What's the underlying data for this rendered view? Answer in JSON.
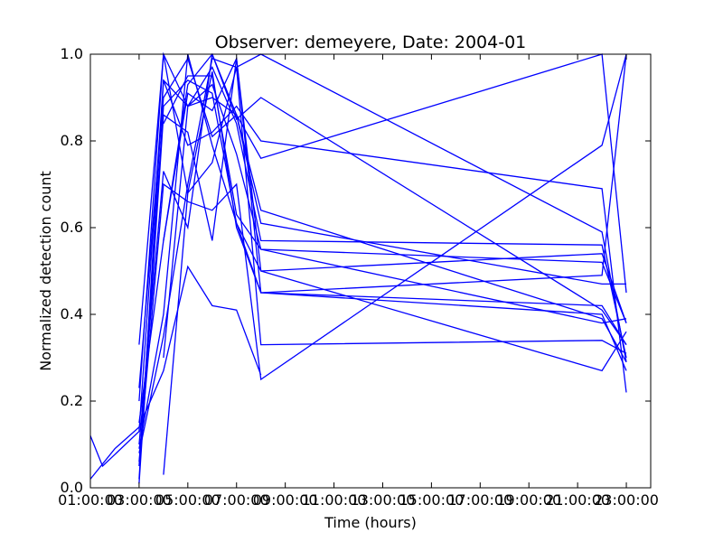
{
  "chart_data": {
    "type": "line",
    "title": "Observer: demeyere, Date: 2004-01",
    "xlabel": "Time (hours)",
    "ylabel": "Normalized detection count",
    "xlim": [
      1,
      24
    ],
    "ylim": [
      0,
      1
    ],
    "grid": false,
    "legend": "none",
    "line_color": "#0000ff",
    "x_ticks": [
      {
        "value": 1,
        "label": "01:00:00"
      },
      {
        "value": 3,
        "label": "03:00:00"
      },
      {
        "value": 5,
        "label": "05:00:00"
      },
      {
        "value": 7,
        "label": "07:00:00"
      },
      {
        "value": 9,
        "label": "09:00:00"
      },
      {
        "value": 11,
        "label": "11:00:00"
      },
      {
        "value": 13,
        "label": "13:00:00"
      },
      {
        "value": 15,
        "label": "15:00:00"
      },
      {
        "value": 17,
        "label": "17:00:00"
      },
      {
        "value": 19,
        "label": "19:00:00"
      },
      {
        "value": 21,
        "label": "21:00:00"
      },
      {
        "value": 23,
        "label": "23:00:00"
      }
    ],
    "y_ticks": [
      {
        "value": 0.0,
        "label": "0.0"
      },
      {
        "value": 0.2,
        "label": "0.2"
      },
      {
        "value": 0.4,
        "label": "0.4"
      },
      {
        "value": 0.6,
        "label": "0.6"
      },
      {
        "value": 0.8,
        "label": "0.8"
      },
      {
        "value": 1.0,
        "label": "1.0"
      }
    ],
    "series": [
      {
        "x": [
          1.0,
          2.0,
          3.0,
          4.0,
          5.0,
          6.0,
          7.0,
          8.0
        ],
        "y": [
          0.02,
          0.09,
          0.14,
          0.27,
          0.51,
          0.42,
          0.41,
          0.26
        ]
      },
      {
        "x": [
          1.0,
          1.5,
          3.0,
          4.0,
          5.0,
          6.0,
          7.0,
          8.0,
          22.0,
          23.0
        ],
        "y": [
          0.12,
          0.05,
          0.13,
          0.94,
          0.88,
          0.97,
          0.84,
          0.57,
          0.56,
          0.3
        ]
      },
      {
        "x": [
          3.0,
          4.0,
          5.0,
          6.0,
          7.0,
          8.0,
          22.0,
          23.0
        ],
        "y": [
          0.33,
          1.0,
          0.68,
          0.75,
          0.97,
          0.33,
          0.34,
          0.31
        ]
      },
      {
        "x": [
          3.0,
          4.0,
          5.0,
          6.0,
          7.0,
          8.0,
          22.0,
          23.0
        ],
        "y": [
          0.23,
          0.9,
          0.99,
          0.81,
          0.86,
          0.64,
          0.39,
          0.29
        ]
      },
      {
        "x": [
          3.0,
          4.0,
          5.0,
          6.0,
          7.0,
          8.0,
          22.0,
          23.0
        ],
        "y": [
          0.06,
          0.7,
          0.66,
          0.64,
          0.7,
          0.25,
          0.79,
          1.0
        ]
      },
      {
        "x": [
          3.0,
          4.0,
          5.0,
          6.0,
          7.0,
          8.0,
          22.0,
          23.0
        ],
        "y": [
          0.02,
          0.94,
          0.79,
          0.82,
          0.88,
          0.8,
          0.69,
          0.22
        ]
      },
      {
        "x": [
          3.0,
          4.0,
          5.0,
          6.0,
          7.0,
          8.0,
          22.0,
          23.0
        ],
        "y": [
          0.05,
          0.88,
          0.94,
          0.91,
          0.61,
          0.5,
          0.54,
          0.38
        ]
      },
      {
        "x": [
          3.0,
          4.0,
          5.0,
          6.0,
          7.0,
          8.0,
          22.0,
          23.0
        ],
        "y": [
          0.1,
          0.73,
          0.6,
          1.0,
          0.85,
          0.9,
          0.41,
          0.33
        ]
      },
      {
        "x": [
          3.0,
          4.0,
          5.0,
          6.0,
          7.0,
          8.0,
          22.0,
          23.0
        ],
        "y": [
          0.01,
          0.86,
          0.82,
          0.57,
          0.99,
          0.45,
          0.4,
          0.27
        ]
      },
      {
        "x": [
          3.0,
          4.0,
          5.0,
          6.0,
          7.0,
          8.0,
          22.0,
          23.0
        ],
        "y": [
          0.15,
          0.57,
          0.91,
          0.87,
          0.99,
          0.5,
          0.27,
          0.36
        ]
      },
      {
        "x": [
          3.0,
          4.0,
          5.0,
          6.0,
          7.0,
          8.0,
          22.0,
          23.0
        ],
        "y": [
          0.09,
          0.4,
          1.0,
          0.79,
          0.61,
          0.45,
          0.42,
          0.33
        ]
      },
      {
        "x": [
          3.0,
          4.0,
          5.0,
          6.0,
          7.0,
          8.0,
          22.0,
          23.0
        ],
        "y": [
          0.08,
          0.35,
          0.7,
          0.99,
          0.97,
          1.0,
          0.59,
          0.29
        ]
      },
      {
        "x": [
          3.0,
          4.0,
          5.0,
          6.0,
          7.0,
          8.0,
          22.0,
          23.0
        ],
        "y": [
          0.2,
          1.0,
          0.88,
          0.9,
          0.86,
          0.76,
          1.0,
          0.45
        ]
      },
      {
        "x": [
          4.0,
          5.0,
          6.0,
          7.0,
          8.0,
          22.0,
          23.0
        ],
        "y": [
          0.03,
          0.68,
          0.96,
          0.6,
          0.45,
          0.49,
          1.0
        ]
      },
      {
        "x": [
          4.0,
          5.0,
          6.0,
          7.0,
          8.0,
          22.0,
          23.0
        ],
        "y": [
          0.3,
          0.88,
          0.93,
          0.77,
          0.55,
          0.38,
          0.39
        ]
      },
      {
        "x": [
          4.0,
          5.0,
          6.0,
          7.0,
          8.0,
          22.0,
          23.0
        ],
        "y": [
          0.57,
          0.93,
          1.0,
          0.86,
          0.61,
          0.47,
          0.47
        ]
      },
      {
        "x": [
          4.0,
          5.0,
          6.0,
          7.0,
          8.0,
          22.0,
          23.0
        ],
        "y": [
          0.84,
          0.95,
          0.95,
          0.63,
          0.55,
          0.52,
          0.38
        ]
      }
    ]
  }
}
